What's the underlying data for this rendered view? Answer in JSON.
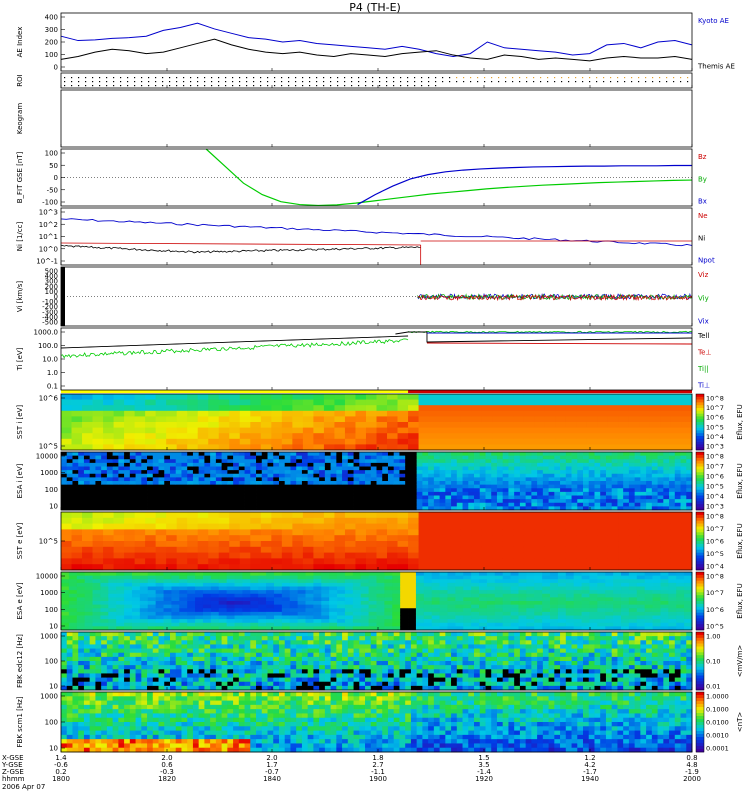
{
  "chart_data": {
    "type": "line",
    "title": "P4 (TH-E)",
    "date_label": "2006 Apr 07",
    "x_ticks": [
      "1800",
      "1820",
      "1840",
      "1900",
      "1920",
      "1940",
      "2000"
    ],
    "footer": {
      "row_labels": [
        "X-GSE",
        "Y-GSE",
        "Z-GSE",
        "hhmm"
      ],
      "rows": [
        [
          "1.4",
          "2.0",
          "2.0",
          "1.8",
          "1.5",
          "1.2",
          "0.8"
        ],
        [
          "-0.6",
          "0.6",
          "1.7",
          "2.7",
          "3.5",
          "4.2",
          "4.8"
        ],
        [
          "0.2",
          "-0.3",
          "-0.7",
          "-1.1",
          "-1.4",
          "-1.7",
          "-1.9"
        ]
      ]
    },
    "panels": [
      {
        "id": "ae",
        "ylabel": "AE Index",
        "ylim": [
          0,
          400
        ],
        "yticks": [
          "400",
          "300",
          "200",
          "100",
          "0"
        ],
        "legend": [
          "Kyoto AE",
          "Themis AE"
        ],
        "series": [
          {
            "name": "Kyoto AE",
            "color": "#0000cc",
            "values": [
              240,
              210,
              215,
              225,
              230,
              240,
              280,
              300,
              330,
              290,
              260,
              230,
              220,
              200,
              210,
              190,
              180,
              170,
              160,
              150,
              170,
              150,
              120,
              100,
              120,
              200,
              160,
              150,
              140,
              130,
              110,
              120,
              180,
              190,
              160,
              200,
              210,
              180
            ]
          },
          {
            "name": "Themis AE",
            "color": "#000000",
            "values": [
              80,
              100,
              130,
              150,
              140,
              120,
              130,
              160,
              190,
              220,
              180,
              150,
              130,
              120,
              130,
              110,
              100,
              120,
              110,
              100,
              120,
              130,
              140,
              110,
              90,
              80,
              110,
              100,
              80,
              90,
              80,
              70,
              90,
              100,
              90,
              90,
              100,
              80
            ]
          }
        ]
      },
      {
        "id": "roi",
        "ylabel": "ROI",
        "yticks": [],
        "legend": []
      },
      {
        "id": "keogram",
        "ylabel": "Keogram",
        "yticks": [],
        "legend": []
      },
      {
        "id": "bfit",
        "ylabel": "B_FIT GSE [nT]",
        "ylim": [
          -100,
          100
        ],
        "yticks": [
          "100",
          "50",
          "0",
          "-50",
          "-100"
        ],
        "legend": [
          "Bz",
          "By",
          "Bx"
        ],
        "legend_colors": [
          "#cc0000",
          "#00aa00",
          "#0000cc"
        ],
        "series": [
          {
            "name": "By",
            "color": "#00cc00",
            "x_start": 0.23,
            "values": [
              100,
              40,
              -20,
              -60,
              -85,
              -95,
              -98,
              -96,
              -90,
              -82,
              -74,
              -66,
              -58,
              -52,
              -46,
              -40,
              -35,
              -31,
              -27,
              -24,
              -21,
              -18,
              -16,
              -14,
              -12,
              -10,
              -9
            ]
          },
          {
            "name": "Bx",
            "color": "#0000cc",
            "x_start": 0.47,
            "values": [
              -95,
              -60,
              -30,
              -5,
              10,
              20,
              26,
              30,
              33,
              35,
              37,
              38,
              39,
              40,
              40,
              41,
              41,
              41,
              42,
              42
            ]
          }
        ]
      },
      {
        "id": "ni",
        "ylabel": "Ni [1/cc]",
        "yticks": [
          "10^3",
          "10^2",
          "10^1",
          "10^0",
          "10^-1"
        ],
        "legend": [
          "Ne",
          "Ni",
          "Npot"
        ],
        "legend_colors": [
          "#cc0000",
          "#000000",
          "#0000cc"
        ]
      },
      {
        "id": "vi",
        "ylabel": "Vi [km/s]",
        "ylim": [
          -500,
          500
        ],
        "yticks": [
          "500",
          "400",
          "300",
          "200",
          "100",
          "0",
          "-100",
          "-200",
          "-300",
          "-400",
          "-500"
        ],
        "legend": [
          "Viz",
          "Viy",
          "Vix"
        ],
        "legend_colors": [
          "#cc0000",
          "#00aa00",
          "#0000cc"
        ]
      },
      {
        "id": "ti",
        "ylabel": "Ti [eV]",
        "yticks": [
          "1000.0",
          "100.0",
          "10.0",
          "1.0",
          "0.1"
        ],
        "legend": [
          "Tell",
          "Te⊥",
          "Ti||",
          "Ti⊥"
        ],
        "legend_colors": [
          "#000000",
          "#cc0000",
          "#00aa00",
          "#0000cc"
        ]
      },
      {
        "id": "sst_i",
        "ylabel": "SST i [eV]",
        "yticks": [
          "10^6",
          "10^5"
        ],
        "legend": []
      },
      {
        "id": "esa_i",
        "ylabel": "ESA i [eV]",
        "yticks": [
          "10000",
          "1000",
          "100",
          "10"
        ],
        "legend": []
      },
      {
        "id": "sst_e",
        "ylabel": "SST e [eV]",
        "yticks": [
          "10^5"
        ],
        "legend": []
      },
      {
        "id": "esa_e",
        "ylabel": "ESA e [eV]",
        "yticks": [
          "10000",
          "1000",
          "100",
          "10"
        ],
        "legend": []
      },
      {
        "id": "fbk_edc",
        "ylabel": "FBK edc12 [Hz]",
        "yticks": [
          "1000",
          "100",
          "10"
        ],
        "legend": []
      },
      {
        "id": "fbk_scm",
        "ylabel": "FBK scm1 [Hz]",
        "yticks": [
          "1000",
          "100",
          "10"
        ],
        "legend": []
      }
    ],
    "colorbars": [
      {
        "label": "Eflux, EFU",
        "ticks": [
          "10^8",
          "10^7",
          "10^6",
          "10^5",
          "10^4",
          "10^3"
        ]
      },
      {
        "label": "Eflux, EFU",
        "ticks": [
          "10^8",
          "10^7",
          "10^6",
          "10^5",
          "10^4",
          "10^3"
        ]
      },
      {
        "label": "Eflux, EFU",
        "ticks": [
          "10^8",
          "10^7",
          "10^6",
          "10^5",
          "10^4"
        ]
      },
      {
        "label": "Eflux, EFU",
        "ticks": [
          "10^8",
          "10^7",
          "10^6",
          "10^5"
        ]
      },
      {
        "label": "<mV/m>",
        "ticks": [
          "1.00",
          "0.10",
          "0.01"
        ]
      },
      {
        "label": "<nT>",
        "ticks": [
          "1.0000",
          "0.1000",
          "0.0100",
          "0.0010",
          "0.0001"
        ]
      }
    ]
  }
}
